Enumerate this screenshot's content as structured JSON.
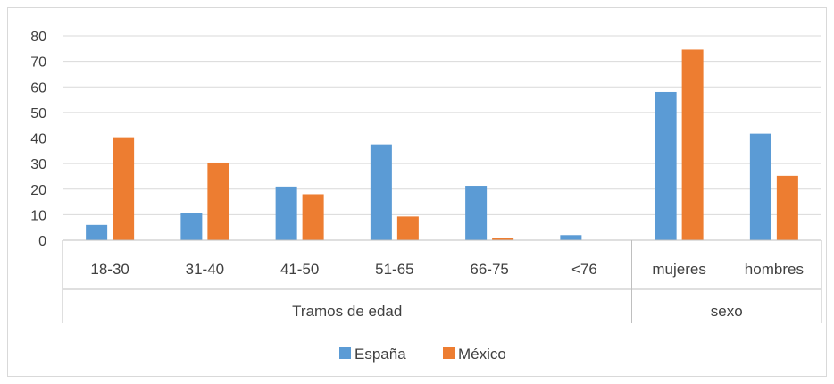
{
  "chart_data": {
    "type": "bar",
    "title": "",
    "xlabel": "",
    "ylabel": "",
    "ylim": [
      0,
      80
    ],
    "yticks": [
      0,
      10,
      20,
      30,
      40,
      50,
      60,
      70,
      80
    ],
    "grid": true,
    "legend_position": "bottom",
    "categories": [
      "18-30",
      "31-40",
      "41-50",
      "51-65",
      "66-75",
      "<76",
      "mujeres",
      "hombres"
    ],
    "groups": [
      {
        "label": "Tramos de edad",
        "categories": [
          "18-30",
          "31-40",
          "41-50",
          "51-65",
          "66-75",
          "<76"
        ]
      },
      {
        "label": "sexo",
        "categories": [
          "mujeres",
          "hombres"
        ]
      }
    ],
    "series": [
      {
        "name": "España",
        "color": "#5b9bd5",
        "values": [
          6,
          10.5,
          21,
          37.5,
          21.3,
          2,
          58,
          41.7
        ]
      },
      {
        "name": "México",
        "color": "#ed7d31",
        "values": [
          40.3,
          30.4,
          18,
          9.3,
          1,
          0,
          74.6,
          25.2
        ]
      }
    ]
  }
}
